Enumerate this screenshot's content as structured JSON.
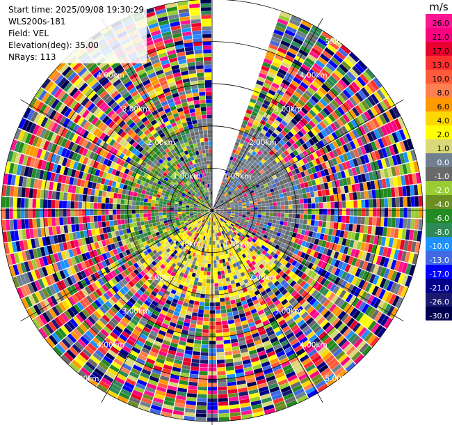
{
  "header": {
    "start_time": "Start time: 2025/09/08 19:30:29",
    "instrument": "WLS200s-181",
    "field": "Field: VEL",
    "elevation": "Elevation(deg): 35.00",
    "nrays": "NRays: 113"
  },
  "chart_data": {
    "type": "ppi-polar",
    "field": "VEL",
    "unit": "m/s",
    "elevation_deg": 35.0,
    "nrays": 113,
    "max_range_km": 5.0,
    "range_rings_km": [
      1.0,
      2.0,
      3.0,
      4.0,
      5.0
    ],
    "ring_labels": [
      "1.00km",
      "2.00km",
      "3.00km",
      "4.00km",
      "5.00km"
    ],
    "grid": true,
    "no_data_sector_deg": [
      0,
      18
    ],
    "colorbar": {
      "position": "right",
      "unit": "m/s",
      "bins": [
        {
          "label": "26.0",
          "color": "#ff1493"
        },
        {
          "label": "21.0",
          "color": "#ff007f"
        },
        {
          "label": "17.0",
          "color": "#e8002e"
        },
        {
          "label": "13.0",
          "color": "#ff3030"
        },
        {
          "label": "10.0",
          "color": "#ff5a3a"
        },
        {
          "label": "8.0",
          "color": "#ff7f50"
        },
        {
          "label": "6.0",
          "color": "#ff9900"
        },
        {
          "label": "4.0",
          "color": "#ffd700"
        },
        {
          "label": "2.0",
          "color": "#ffff00"
        },
        {
          "label": "1.0",
          "color": "#d9d97a"
        },
        {
          "label": "0.0",
          "color": "#708090"
        },
        {
          "label": "-1.0",
          "color": "#696969"
        },
        {
          "label": "-2.0",
          "color": "#9acd32"
        },
        {
          "label": "-4.0",
          "color": "#6b8e23"
        },
        {
          "label": "-6.0",
          "color": "#228b22"
        },
        {
          "label": "-8.0",
          "color": "#2e8b57"
        },
        {
          "label": "-10.0",
          "color": "#1e90ff"
        },
        {
          "label": "-13.0",
          "color": "#4169e1"
        },
        {
          "label": "-17.0",
          "color": "#0000ff"
        },
        {
          "label": "-21.0",
          "color": "#00008b"
        },
        {
          "label": "-26.0",
          "color": "#191970"
        },
        {
          "label": "-30.0",
          "color": "#000050"
        }
      ]
    }
  }
}
